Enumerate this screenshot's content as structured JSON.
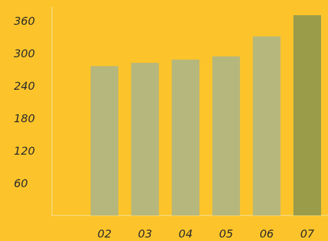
{
  "chart_data": {
    "type": "bar",
    "categories": [
      "02",
      "03",
      "04",
      "05",
      "06",
      "07"
    ],
    "values": [
      276,
      282,
      288,
      294,
      331,
      370
    ],
    "title": "",
    "xlabel": "",
    "ylabel": "",
    "ylim": [
      0,
      370
    ],
    "yticks": [
      "60",
      "120",
      "180",
      "240",
      "300",
      "360"
    ],
    "grid": false,
    "legend": "none",
    "colors": {
      "background": "#FCC42A",
      "bar": "#B6B77C",
      "highlight_bar": "#9A9C4A",
      "axis": "#F3E3A6"
    },
    "highlight_index": 5
  }
}
